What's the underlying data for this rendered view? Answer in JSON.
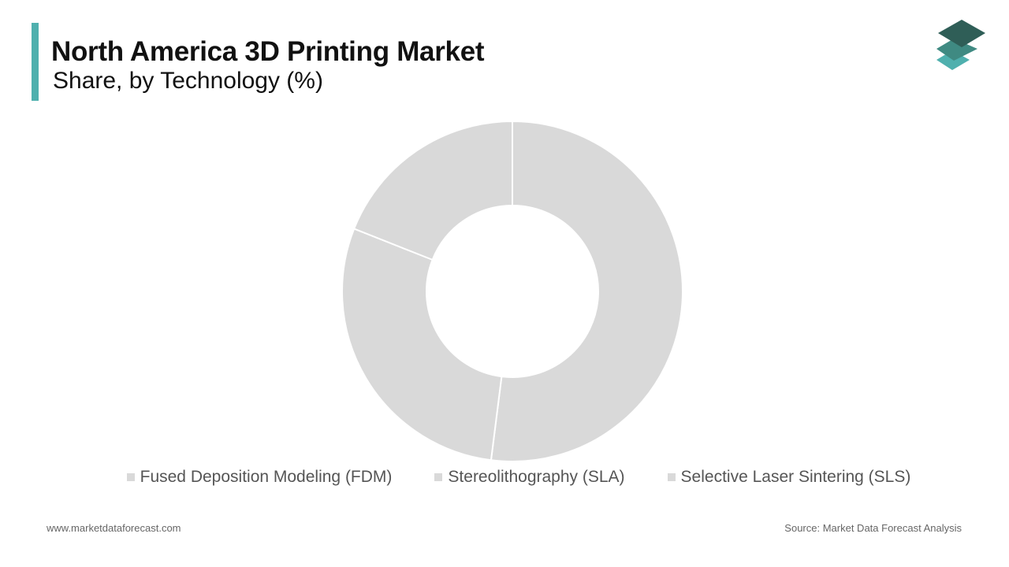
{
  "chart_data": {
    "type": "donut",
    "title": "North America 3D Printing Market",
    "subtitle": "Share, by Technology (%)",
    "categories": [
      "Fused Deposition Modeling (FDM)",
      "Stereolithography (SLA)",
      "Selective Laser Sintering (SLS)"
    ],
    "values": [
      52,
      29,
      19
    ],
    "colors": [
      "#d9d9d9",
      "#d9d9d9",
      "#d9d9d9"
    ],
    "legend": "bottom"
  },
  "footer": {
    "website": "www.marketdataforecast.com",
    "source": "Source: Market Data Forecast Analysis"
  }
}
